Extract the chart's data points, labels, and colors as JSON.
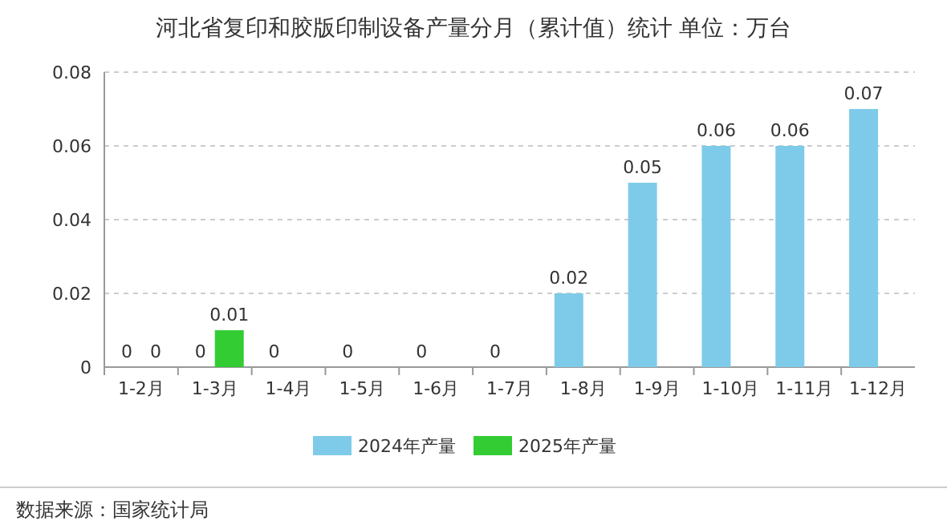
{
  "chart_data": {
    "type": "bar",
    "title": "河北省复印和胶版印制设备产量分月（累计值）统计  单位：万台",
    "categories": [
      "1-2月",
      "1-3月",
      "1-4月",
      "1-5月",
      "1-6月",
      "1-7月",
      "1-8月",
      "1-9月",
      "1-10月",
      "1-11月",
      "1-12月"
    ],
    "series": [
      {
        "name": "2024年产量",
        "color": "#7ecbe9",
        "values": [
          0,
          0,
          0,
          0,
          0,
          0,
          0.02,
          0.05,
          0.06,
          0.06,
          0.07
        ]
      },
      {
        "name": "2025年产量",
        "color": "#33cc33",
        "values": [
          0,
          0.01,
          null,
          null,
          null,
          null,
          null,
          null,
          null,
          null,
          null
        ]
      }
    ],
    "ylim": [
      0,
      0.08
    ],
    "yticks": [
      0,
      0.02,
      0.04,
      0.06,
      0.08
    ],
    "grid": "y",
    "legend": "bottom",
    "data_labels": true,
    "annotations": [
      "数据来源：国家统计局"
    ]
  }
}
